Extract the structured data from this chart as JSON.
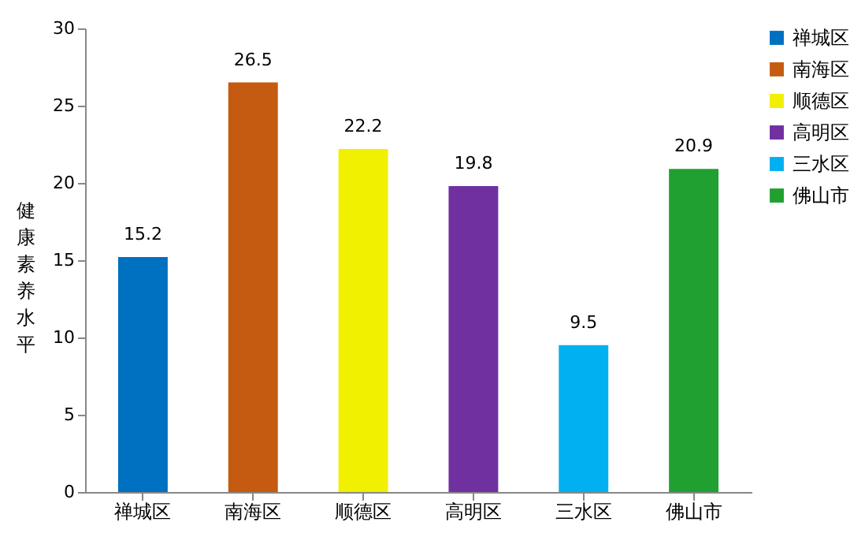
{
  "chart_data": {
    "type": "bar",
    "ylabel": "健康素养水平",
    "categories": [
      "禅城区",
      "南海区",
      "顺德区",
      "高明区",
      "三水区",
      "佛山市"
    ],
    "series": [
      {
        "name": "禅城区",
        "color": "#0070c0",
        "values": [
          15.2,
          null,
          null,
          null,
          null,
          null
        ]
      },
      {
        "name": "南海区",
        "color": "#c55a11",
        "values": [
          null,
          26.5,
          null,
          null,
          null,
          null
        ]
      },
      {
        "name": "顺德区",
        "color": "#f0f000",
        "values": [
          null,
          null,
          22.2,
          null,
          null,
          null
        ]
      },
      {
        "name": "高明区",
        "color": "#7030a0",
        "values": [
          null,
          null,
          null,
          19.8,
          null,
          null
        ]
      },
      {
        "name": "三水区",
        "color": "#00b0f0",
        "values": [
          null,
          null,
          null,
          null,
          9.5,
          null
        ]
      },
      {
        "name": "佛山市",
        "color": "#20a030",
        "values": [
          null,
          null,
          null,
          null,
          null,
          20.9
        ]
      }
    ],
    "ylim": [
      0,
      30
    ],
    "yticks": [
      0,
      5,
      10,
      15,
      20,
      25,
      30
    ],
    "grid": false,
    "legend": "right",
    "data_labels": true
  }
}
